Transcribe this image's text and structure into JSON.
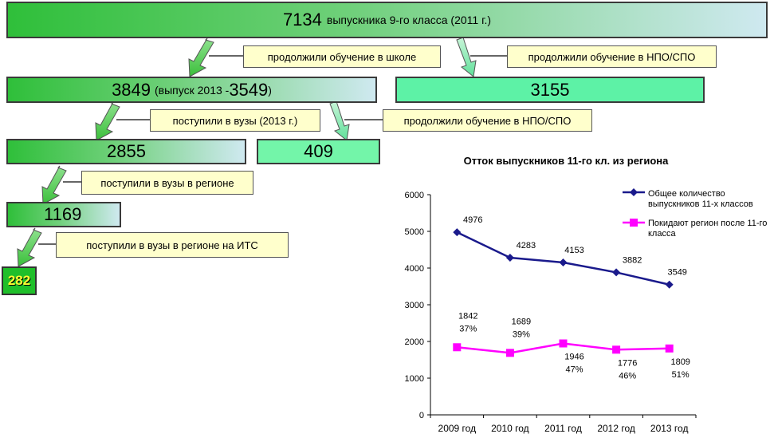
{
  "flow": {
    "top": {
      "number": "7134",
      "text": "выпускника 9-го класса (2011 г.)"
    },
    "school_label": "продолжили обучение в школе",
    "npo_label": "продолжили обучение в НПО/СПО",
    "school": {
      "number": "3849",
      "text": "(выпуск 2013 - ",
      "number2": "3549",
      "close": ")"
    },
    "npo_value": "3155",
    "vuz_label": "поступили в вузы (2013 г.)",
    "npo2_label": "продолжили обучение в НПО/СПО",
    "vuz_value": "2855",
    "npo2_value": "409",
    "region_label": "поступили в вузы в регионе",
    "region_value": "1169",
    "its_label": "поступили в вузы в регионе на ИТС",
    "its_value": "282"
  },
  "chart_data": {
    "type": "line",
    "title": "Отток выпускников 11-го кл. из региона",
    "categories": [
      "2009 год",
      "2010 год",
      "2011 год",
      "2012 год",
      "2013 год"
    ],
    "ylim": [
      0,
      6000
    ],
    "yticks": [
      "0",
      "1000",
      "2000",
      "3000",
      "4000",
      "5000",
      "6000"
    ],
    "legend_position": "top-right",
    "series": [
      {
        "name": "Общее количество выпускников 11-х классов",
        "color": "#1a1a8c",
        "marker": "diamond",
        "values": [
          4976,
          4283,
          4153,
          3882,
          3549
        ],
        "labels": [
          "4976",
          "4283",
          "4153",
          "3882",
          "3549"
        ]
      },
      {
        "name": "Покидают регион после 11-го класса",
        "color": "#ff00ff",
        "marker": "square",
        "values": [
          1842,
          1689,
          1946,
          1776,
          1809
        ],
        "labels": [
          "1842",
          "1689",
          "1946",
          "1776",
          "1809"
        ],
        "percents": [
          "37%",
          "39%",
          "47%",
          "46%",
          "51%"
        ]
      }
    ]
  }
}
